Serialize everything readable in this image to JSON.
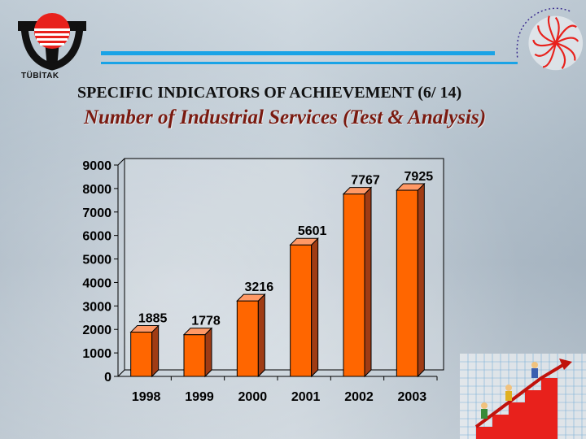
{
  "header": {
    "org_label": "TÜBİTAK",
    "title": "SPECIFIC INDICATORS OF ACHIEVEMENT (6/ 14)",
    "subtitle": "Number of Industrial Services (Test & Analysis)"
  },
  "colors": {
    "bar_front": "#ff6600",
    "bar_side": "#a03c14",
    "bar_top": "#ff9966",
    "accent_stripe": "#1aa3e6",
    "subtitle": "#7a1a10"
  },
  "icons": [
    "tubitak-logo-icon",
    "mam-logo-icon",
    "staircase-climbers-icon"
  ],
  "chart_data": {
    "type": "bar",
    "categories": [
      "1998",
      "1999",
      "2000",
      "2001",
      "2002",
      "2003"
    ],
    "values": [
      1885,
      1778,
      3216,
      5601,
      7767,
      7925
    ],
    "data_labels": [
      "1885",
      "1778",
      "3216",
      "5601",
      "7767",
      "7925"
    ],
    "title": "",
    "xlabel": "",
    "ylabel": "",
    "ylim": [
      0,
      9000
    ],
    "yticks": [
      "0",
      "1000",
      "2000",
      "3000",
      "4000",
      "5000",
      "6000",
      "7000",
      "8000",
      "9000"
    ],
    "grid": false,
    "style": "3d"
  }
}
